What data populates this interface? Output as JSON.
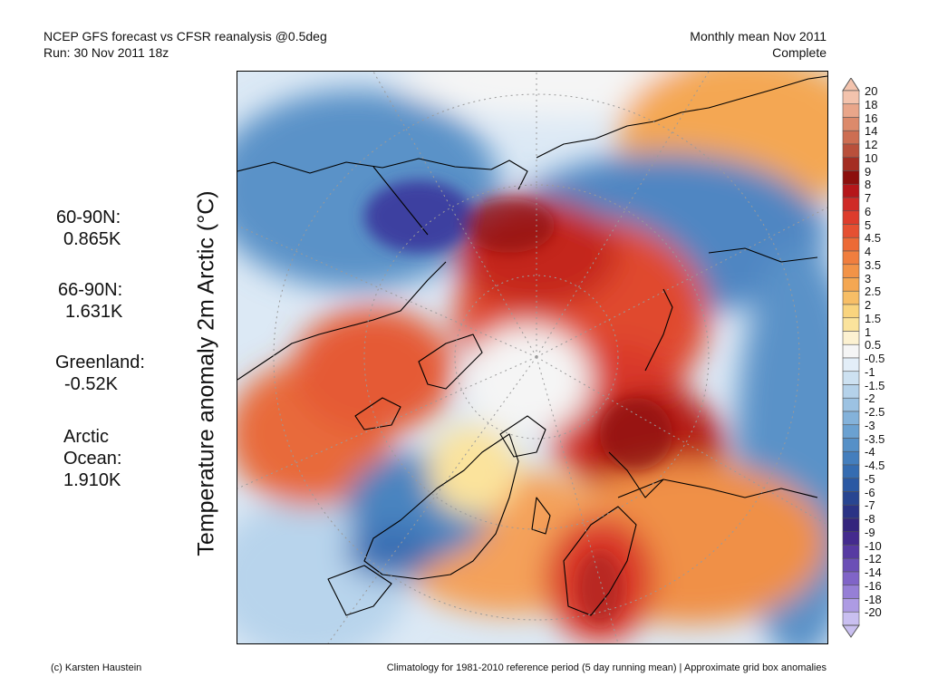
{
  "header": {
    "line1": "NCEP GFS forecast vs CFSR reanalysis @0.5deg",
    "line2": "Run: 30 Nov 2011 18z",
    "right1": "Monthly mean Nov 2011",
    "right2": "Complete"
  },
  "ylabel": "Temperature anomaly 2m Arctic (°C)",
  "stats": [
    {
      "label": "60-90N:",
      "value": "0.865K"
    },
    {
      "label": "66-90N:",
      "value": "1.631K"
    },
    {
      "label": "Greenland:",
      "value": "-0.52K"
    },
    {
      "label": "Arctic",
      "label2": "Ocean:",
      "value": "1.910K"
    }
  ],
  "colorbar": {
    "ticks": [
      "20",
      "18",
      "16",
      "14",
      "12",
      "10",
      "9",
      "8",
      "7",
      "6",
      "5",
      "4.5",
      "4",
      "3.5",
      "3",
      "2.5",
      "2",
      "1.5",
      "1",
      "0.5",
      "-0.5",
      "-1",
      "-1.5",
      "-2",
      "-2.5",
      "-3",
      "-3.5",
      "-4",
      "-4.5",
      "-5",
      "-6",
      "-7",
      "-8",
      "-9",
      "-10",
      "-12",
      "-14",
      "-16",
      "-18",
      "-20"
    ],
    "colors": [
      "#f3c3ad",
      "#e9a68a",
      "#dc8a6b",
      "#cd6e52",
      "#b9503b",
      "#a42d22",
      "#8c0f0d",
      "#b5161a",
      "#cf2a26",
      "#dd3c2c",
      "#e55032",
      "#ec6a36",
      "#f07e3e",
      "#f29347",
      "#f4a752",
      "#f7be66",
      "#f9d47e",
      "#fbe39c",
      "#fcf1d1",
      "#f5f5f5",
      "#e3eef8",
      "#cde1f1",
      "#b5d2ea",
      "#9cc2e2",
      "#84b2da",
      "#6ba1d1",
      "#5690c7",
      "#447ebd",
      "#356cb1",
      "#2b58a3",
      "#284591",
      "#2b3385",
      "#34257d",
      "#442b8e",
      "#573aa2",
      "#6b4fb6",
      "#8064c7",
      "#967fd6",
      "#ad9be3",
      "#c9bff0"
    ]
  },
  "footer": {
    "left": "(c) Karsten Haustein",
    "right": "Climatology for 1981-2010 reference period (5 day running mean) | Approximate grid box anomalies"
  }
}
